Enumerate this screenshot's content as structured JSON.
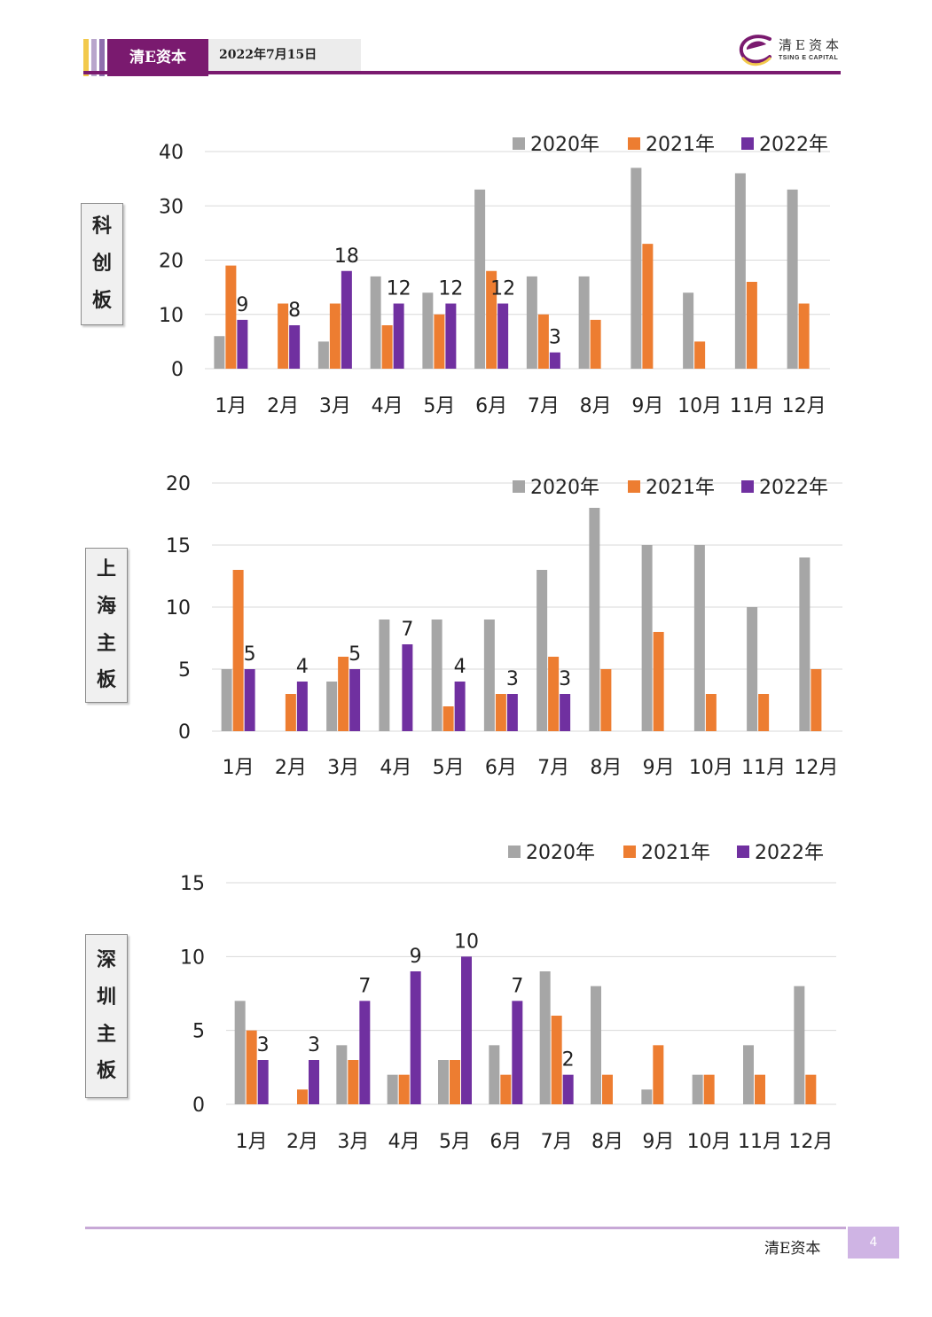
{
  "header": {
    "brand": "清E资本",
    "date": "2022年7月15日",
    "logo_text": "清E资本",
    "logo_subtext": "TSING E CAPITAL"
  },
  "footer": {
    "brand": "清E资本",
    "page": "4"
  },
  "colors": {
    "2020年": "#a6a6a6",
    "2021年": "#ed7d31",
    "2022年": "#7030a0",
    "accent": "#7a1a6f"
  },
  "chart_data": [
    {
      "type": "bar",
      "board_label": "科创板",
      "categories": [
        "1月",
        "2月",
        "3月",
        "4月",
        "5月",
        "6月",
        "7月",
        "8月",
        "9月",
        "10月",
        "11月",
        "12月"
      ],
      "series": [
        {
          "name": "2020年",
          "values": [
            6,
            0,
            5,
            17,
            14,
            33,
            17,
            17,
            37,
            14,
            36,
            33
          ]
        },
        {
          "name": "2021年",
          "values": [
            19,
            12,
            12,
            8,
            10,
            18,
            10,
            9,
            23,
            5,
            16,
            12
          ]
        },
        {
          "name": "2022年",
          "values": [
            9,
            8,
            18,
            12,
            12,
            12,
            3,
            null,
            null,
            null,
            null,
            null
          ]
        }
      ],
      "labeled_series": "2022年",
      "ylim": [
        0,
        40
      ],
      "yticks": [
        0,
        10,
        20,
        30,
        40
      ],
      "legend": "top-right",
      "grid": true
    },
    {
      "type": "bar",
      "board_label": "上海主板",
      "categories": [
        "1月",
        "2月",
        "3月",
        "4月",
        "5月",
        "6月",
        "7月",
        "8月",
        "9月",
        "10月",
        "11月",
        "12月"
      ],
      "series": [
        {
          "name": "2020年",
          "values": [
            5,
            0,
            4,
            9,
            9,
            9,
            13,
            18,
            15,
            15,
            10,
            14
          ]
        },
        {
          "name": "2021年",
          "values": [
            13,
            3,
            6,
            0,
            2,
            3,
            6,
            5,
            8,
            3,
            3,
            5
          ]
        },
        {
          "name": "2022年",
          "values": [
            5,
            4,
            5,
            7,
            4,
            3,
            3,
            null,
            null,
            null,
            null,
            null
          ]
        }
      ],
      "labeled_series": "2022年",
      "ylim": [
        0,
        20
      ],
      "yticks": [
        0,
        5,
        10,
        15,
        20
      ],
      "legend": "top-right",
      "grid": true
    },
    {
      "type": "bar",
      "board_label": "深圳主板",
      "categories": [
        "1月",
        "2月",
        "3月",
        "4月",
        "5月",
        "6月",
        "7月",
        "8月",
        "9月",
        "10月",
        "11月",
        "12月"
      ],
      "series": [
        {
          "name": "2020年",
          "values": [
            7,
            0,
            4,
            2,
            3,
            4,
            9,
            8,
            1,
            2,
            4,
            8
          ]
        },
        {
          "name": "2021年",
          "values": [
            5,
            1,
            3,
            2,
            3,
            2,
            6,
            2,
            4,
            2,
            2,
            2
          ]
        },
        {
          "name": "2022年",
          "values": [
            3,
            3,
            7,
            9,
            10,
            7,
            2,
            null,
            null,
            null,
            null,
            null
          ]
        }
      ],
      "labeled_series": "2022年",
      "ylim": [
        0,
        15
      ],
      "yticks": [
        0,
        5,
        10,
        15
      ],
      "legend": "top-right",
      "grid": true
    }
  ]
}
